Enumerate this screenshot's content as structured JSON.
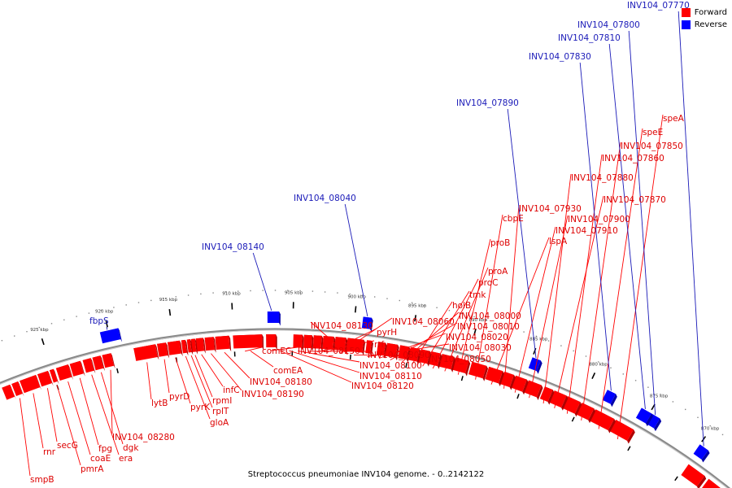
{
  "caption": "Streptococcus pneumoniae INV104 genome. - 0..2142122",
  "legend": [
    {
      "label": "Forward",
      "color": "#ff0000"
    },
    {
      "label": "Reverse",
      "color": "#0000ff"
    }
  ],
  "colors": {
    "forward": "#ff0000",
    "reverse": "#0000ff",
    "backbone": "#888888"
  },
  "ticks": [
    "870 kbp",
    "875 kbp",
    "880 kbp",
    "885 kbp",
    "890 kbp",
    "895 kbp",
    "900 kbp",
    "905 kbp",
    "910 kbp",
    "915 kbp",
    "920 kbp",
    "925 kbp"
  ],
  "forward_genes": [
    "speA",
    "speE",
    "INV104_07850",
    "INV104_07860",
    "INV104_07870",
    "INV104_07880",
    "INV104_07900",
    "INV104_07910",
    "INV104_07930",
    "lspA",
    "cbpE",
    "proB",
    "proA",
    "proC",
    "tmk",
    "holB",
    "INV104_08000",
    "INV104_08010",
    "INV104_08020",
    "INV104_08030",
    "INV104_08050",
    "INV104_08060",
    "pyrH",
    "rrf",
    "INV104_08090",
    "INV104_08100",
    "INV104_08110",
    "INV104_08120",
    "INV104_08130",
    "INV104_08150",
    "comEA",
    "comEC",
    "INV104_08180",
    "INV104_08190",
    "infC",
    "rpmI",
    "rplT",
    "gloA",
    "pyrK",
    "pyrD",
    "lytB",
    "INV104_08280",
    "dgk",
    "era",
    "fpg",
    "coaE",
    "pmrA",
    "secG",
    "rnr",
    "smpB"
  ],
  "reverse_genes": [
    "INV104_07770",
    "INV104_07800",
    "INV104_07810",
    "INV104_07830",
    "INV104_07890",
    "INV104_08040",
    "INV104_08140",
    "fbpS"
  ]
}
